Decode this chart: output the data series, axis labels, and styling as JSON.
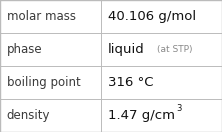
{
  "rows": [
    {
      "label": "molar mass",
      "value": "40.106 g/mol",
      "suffix": null,
      "superscript": null
    },
    {
      "label": "phase",
      "value": "liquid",
      "suffix": "(at STP)",
      "superscript": null
    },
    {
      "label": "boiling point",
      "value": "316 °C",
      "suffix": null,
      "superscript": null
    },
    {
      "label": "density",
      "value": "1.47 g/cm",
      "suffix": null,
      "superscript": "3"
    }
  ],
  "col_split": 0.455,
  "background_color": "#ffffff",
  "line_color": "#bbbbbb",
  "label_color": "#3a3a3a",
  "value_color": "#111111",
  "suffix_color": "#888888",
  "label_fontsize": 8.5,
  "value_fontsize": 9.5,
  "suffix_fontsize": 6.5,
  "super_fontsize": 6.0,
  "figwidth": 2.22,
  "figheight": 1.32,
  "dpi": 100
}
